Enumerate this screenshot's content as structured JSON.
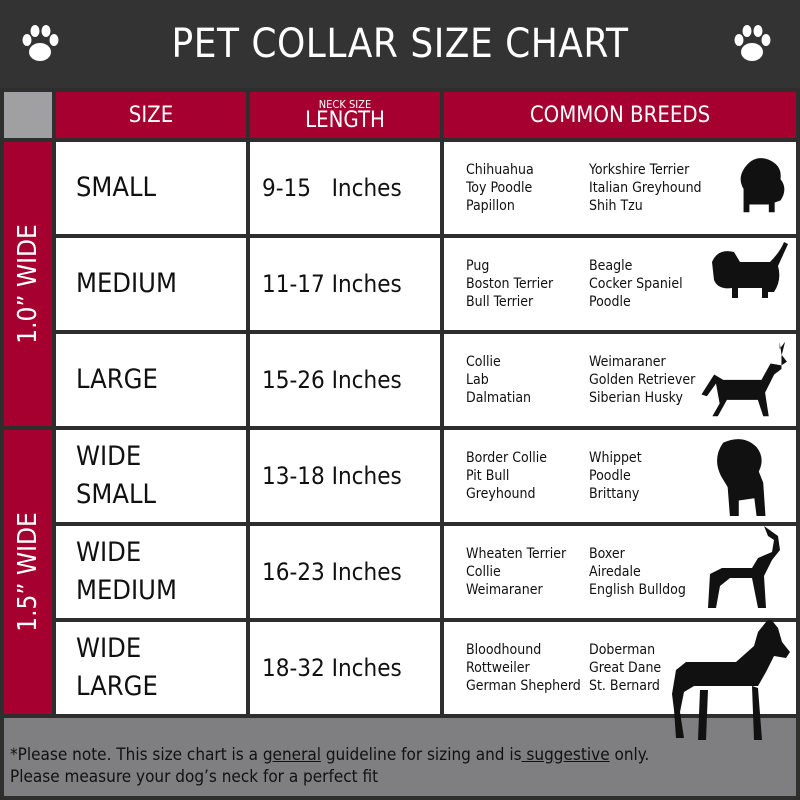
{
  "title": "PET COLLAR SIZE CHART",
  "icons": {
    "header": "paw-print-icon"
  },
  "colors": {
    "accent": "#a50030",
    "header_bg": "#333333",
    "footer_bg": "#7f7f81"
  },
  "columns": {
    "size": "SIZE",
    "length_small": "NECK SIZE",
    "length_big": "LENGTH",
    "breeds": "COMMON BREEDS"
  },
  "groups": [
    {
      "label": "1.0” WIDE"
    },
    {
      "label": "1.5” WIDE"
    }
  ],
  "rows": [
    {
      "size": "SMALL",
      "length": "9-15   Inches",
      "breeds_a": [
        "Chihuahua",
        "Toy Poodle",
        "Papillon"
      ],
      "breeds_b": [
        "Yorkshire Terrier",
        "Italian Greyhound",
        "Shih Tzu"
      ]
    },
    {
      "size": "MEDIUM",
      "length": "11-17 Inches",
      "breeds_a": [
        "Pug",
        "Boston Terrier",
        "Bull Terrier"
      ],
      "breeds_b": [
        "Beagle",
        "Cocker Spaniel",
        "Poodle"
      ]
    },
    {
      "size": "LARGE",
      "length": "15-26 Inches",
      "breeds_a": [
        "Collie",
        "Lab",
        "Dalmatian"
      ],
      "breeds_b": [
        "Weimaraner",
        "Golden Retriever",
        "Siberian Husky"
      ]
    },
    {
      "size": "WIDE SMALL",
      "length": "13-18 Inches",
      "breeds_a": [
        "Border Collie",
        "Pit Bull",
        "Greyhound"
      ],
      "breeds_b": [
        "Whippet",
        "Poodle",
        "Brittany"
      ]
    },
    {
      "size": "WIDE MEDIUM",
      "length": "16-23 Inches",
      "breeds_a": [
        "Wheaten Terrier",
        "Collie",
        "Weimaraner"
      ],
      "breeds_b": [
        "Boxer",
        "Airedale",
        "English Bulldog"
      ]
    },
    {
      "size": "WIDE LARGE",
      "length": "18-32 Inches",
      "breeds_a": [
        "Bloodhound",
        "Rottweiler",
        "German Shepherd"
      ],
      "breeds_b": [
        "Doberman",
        "Great Dane",
        "St. Bernard"
      ]
    }
  ],
  "footer": {
    "p1": "*Please note. This size chart is a ",
    "u1": "general",
    "p2": " guideline for sizing and is",
    "u2": " suggestive",
    "p3": " only.",
    "line2": "Please measure your dog’s neck for a perfect fit"
  }
}
